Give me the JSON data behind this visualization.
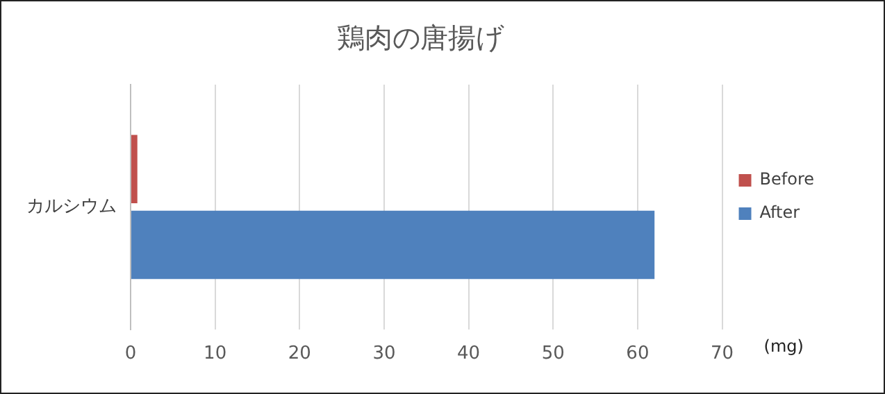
{
  "chart_data": {
    "type": "bar",
    "orientation": "horizontal",
    "title": "鶏肉の唐揚げ",
    "xlabel": "(mg)",
    "categories": [
      "カルシウム"
    ],
    "series": [
      {
        "name": "Before",
        "color": "#c0504d",
        "values": [
          0.8
        ]
      },
      {
        "name": "After",
        "color": "#4f81bd",
        "values": [
          62
        ]
      }
    ],
    "xlim": [
      0,
      70
    ],
    "xticks": [
      0,
      10,
      20,
      30,
      40,
      50,
      60,
      70
    ],
    "grid": "x",
    "legend": "right"
  }
}
